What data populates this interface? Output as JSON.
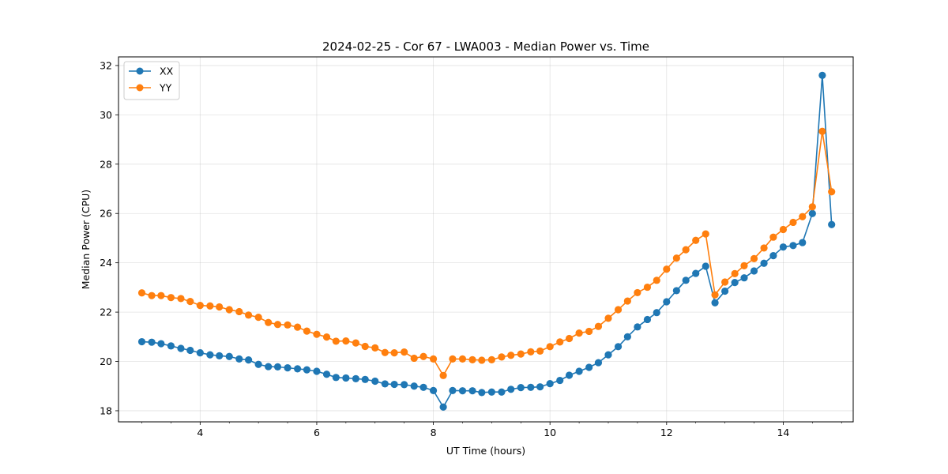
{
  "chart_data": {
    "type": "line",
    "title": "2024-02-25 - Cor 67 - LWA003 - Median Power vs. Time",
    "xlabel": "UT Time (hours)",
    "ylabel": "Median Power (CPU)",
    "xlim": [
      2.6,
      15.2
    ],
    "ylim": [
      17.55,
      32.35
    ],
    "xticks": [
      4,
      6,
      8,
      10,
      12,
      14
    ],
    "yticks": [
      18,
      20,
      22,
      24,
      26,
      28,
      30,
      32
    ],
    "grid": true,
    "legend_position": "upper-left",
    "x": [
      3.0,
      3.17,
      3.33,
      3.5,
      3.67,
      3.83,
      4.0,
      4.17,
      4.33,
      4.5,
      4.67,
      4.83,
      5.0,
      5.17,
      5.33,
      5.5,
      5.67,
      5.83,
      6.0,
      6.17,
      6.33,
      6.5,
      6.67,
      6.83,
      7.0,
      7.17,
      7.33,
      7.5,
      7.67,
      7.83,
      8.0,
      8.17,
      8.33,
      8.5,
      8.67,
      8.83,
      9.0,
      9.17,
      9.33,
      9.5,
      9.67,
      9.83,
      10.0,
      10.17,
      10.33,
      10.5,
      10.67,
      10.83,
      11.0,
      11.17,
      11.33,
      11.5,
      11.67,
      11.83,
      12.0,
      12.17,
      12.33,
      12.5,
      12.67,
      12.83,
      13.0,
      13.17,
      13.33,
      13.5,
      13.67,
      13.83,
      14.0,
      14.17,
      14.33,
      14.5,
      14.67,
      14.83
    ],
    "series": [
      {
        "name": "XX",
        "color": "#1f77b4",
        "values": [
          20.8,
          20.78,
          20.72,
          20.63,
          20.53,
          20.45,
          20.35,
          20.27,
          20.23,
          20.2,
          20.1,
          20.06,
          19.88,
          19.79,
          19.78,
          19.74,
          19.7,
          19.66,
          19.6,
          19.48,
          19.35,
          19.33,
          19.3,
          19.27,
          19.2,
          19.09,
          19.07,
          19.06,
          19.0,
          18.95,
          18.82,
          18.15,
          18.82,
          18.81,
          18.81,
          18.74,
          18.76,
          18.76,
          18.87,
          18.94,
          18.95,
          18.97,
          19.1,
          19.23,
          19.44,
          19.6,
          19.76,
          19.95,
          20.27,
          20.6,
          21.0,
          21.4,
          21.7,
          21.98,
          22.42,
          22.87,
          23.29,
          23.57,
          23.86,
          22.38,
          22.85,
          23.2,
          23.39,
          23.67,
          23.98,
          24.29,
          24.64,
          24.7,
          24.82,
          26.0,
          31.6,
          25.55
        ]
      },
      {
        "name": "YY",
        "color": "#ff7f0e",
        "values": [
          22.78,
          22.67,
          22.67,
          22.59,
          22.55,
          22.43,
          22.27,
          22.25,
          22.21,
          22.1,
          22.02,
          21.88,
          21.79,
          21.58,
          21.5,
          21.48,
          21.39,
          21.23,
          21.1,
          20.99,
          20.82,
          20.83,
          20.75,
          20.61,
          20.55,
          20.36,
          20.35,
          20.38,
          20.13,
          20.2,
          20.1,
          19.43,
          20.1,
          20.1,
          20.07,
          20.05,
          20.07,
          20.18,
          20.25,
          20.3,
          20.39,
          20.42,
          20.6,
          20.79,
          20.93,
          21.15,
          21.22,
          21.42,
          21.75,
          22.1,
          22.45,
          22.79,
          23.01,
          23.29,
          23.74,
          24.19,
          24.53,
          24.91,
          25.17,
          22.7,
          23.22,
          23.56,
          23.88,
          24.17,
          24.6,
          25.04,
          25.35,
          25.64,
          25.87,
          26.27,
          29.33,
          26.88
        ]
      }
    ]
  }
}
